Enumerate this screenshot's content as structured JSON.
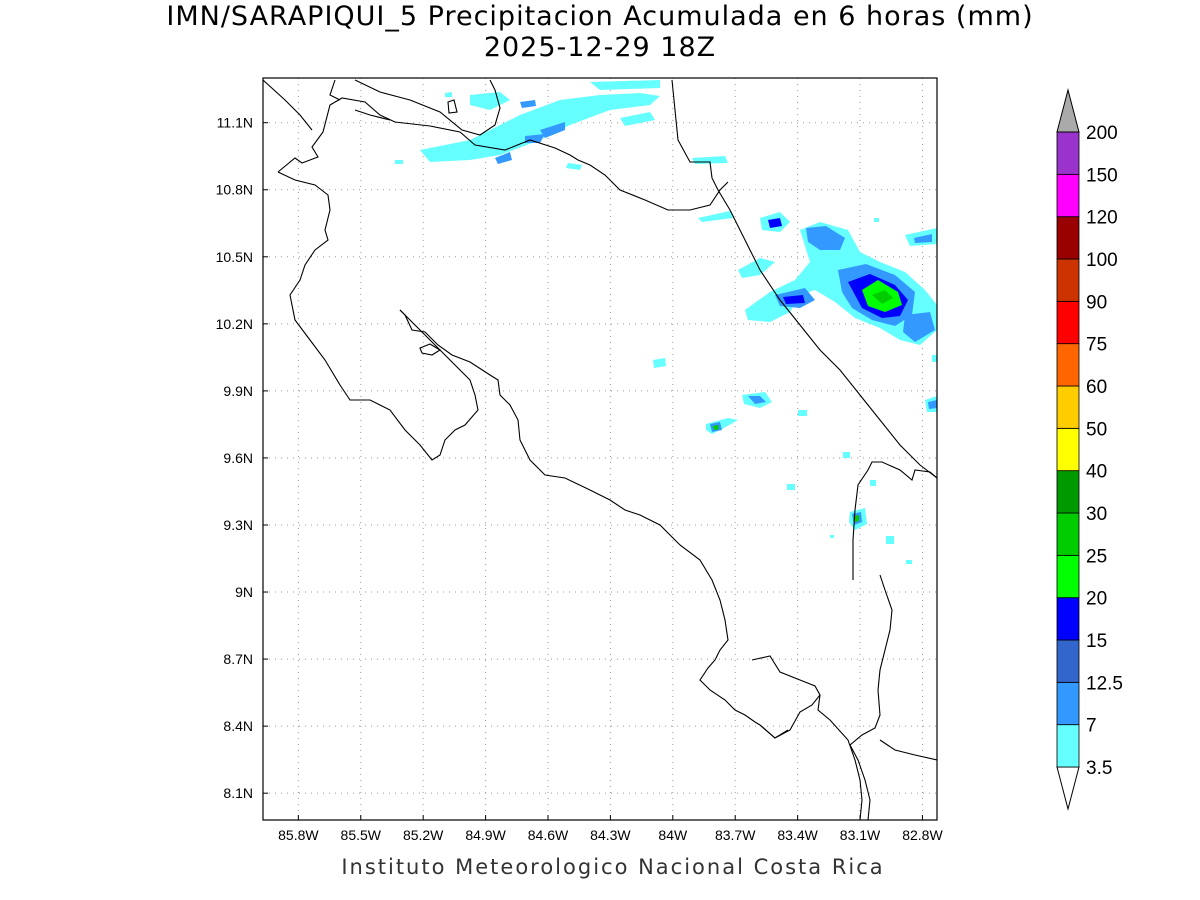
{
  "title": {
    "line1": "IMN/SARAPIQUI_5 Precipitacion Acumulada en 6 horas (mm)",
    "line2": "2025-12-29 18Z"
  },
  "credit": "Instituto Meteorologico Nacional Costa Rica",
  "map": {
    "lon_range": [
      -85.97,
      -82.73
    ],
    "lat_range": [
      7.98,
      11.3
    ],
    "lon_ticks": [
      "85.8W",
      "85.5W",
      "85.2W",
      "84.9W",
      "84.6W",
      "84.3W",
      "84W",
      "83.7W",
      "83.4W",
      "83.1W",
      "82.8W"
    ],
    "lon_tick_values": [
      -85.8,
      -85.5,
      -85.2,
      -84.9,
      -84.6,
      -84.3,
      -84.0,
      -83.7,
      -83.4,
      -83.1,
      -82.8
    ],
    "lat_ticks": [
      "11.1N",
      "10.8N",
      "10.5N",
      "10.2N",
      "9.9N",
      "9.6N",
      "9.3N",
      "9N",
      "8.7N",
      "8.4N",
      "8.1N"
    ],
    "lat_tick_values": [
      11.1,
      10.8,
      10.5,
      10.2,
      9.9,
      9.6,
      9.3,
      9.0,
      8.7,
      8.4,
      8.1
    ],
    "grid": "dotted"
  },
  "legend": {
    "labels": [
      "3.5",
      "7",
      "12.5",
      "15",
      "20",
      "25",
      "30",
      "40",
      "50",
      "60",
      "75",
      "90",
      "100",
      "120",
      "150",
      "200"
    ],
    "colors": [
      "#66ffff",
      "#3399ff",
      "#3366cc",
      "#0000ff",
      "#00ff00",
      "#00cc00",
      "#009900",
      "#ffff00",
      "#ffcc00",
      "#ff6600",
      "#ff0000",
      "#cc3300",
      "#990000",
      "#ff00ff",
      "#9933cc",
      "#f2f2f2",
      "#aaaaaa"
    ],
    "under_color": "#ffffff"
  }
}
